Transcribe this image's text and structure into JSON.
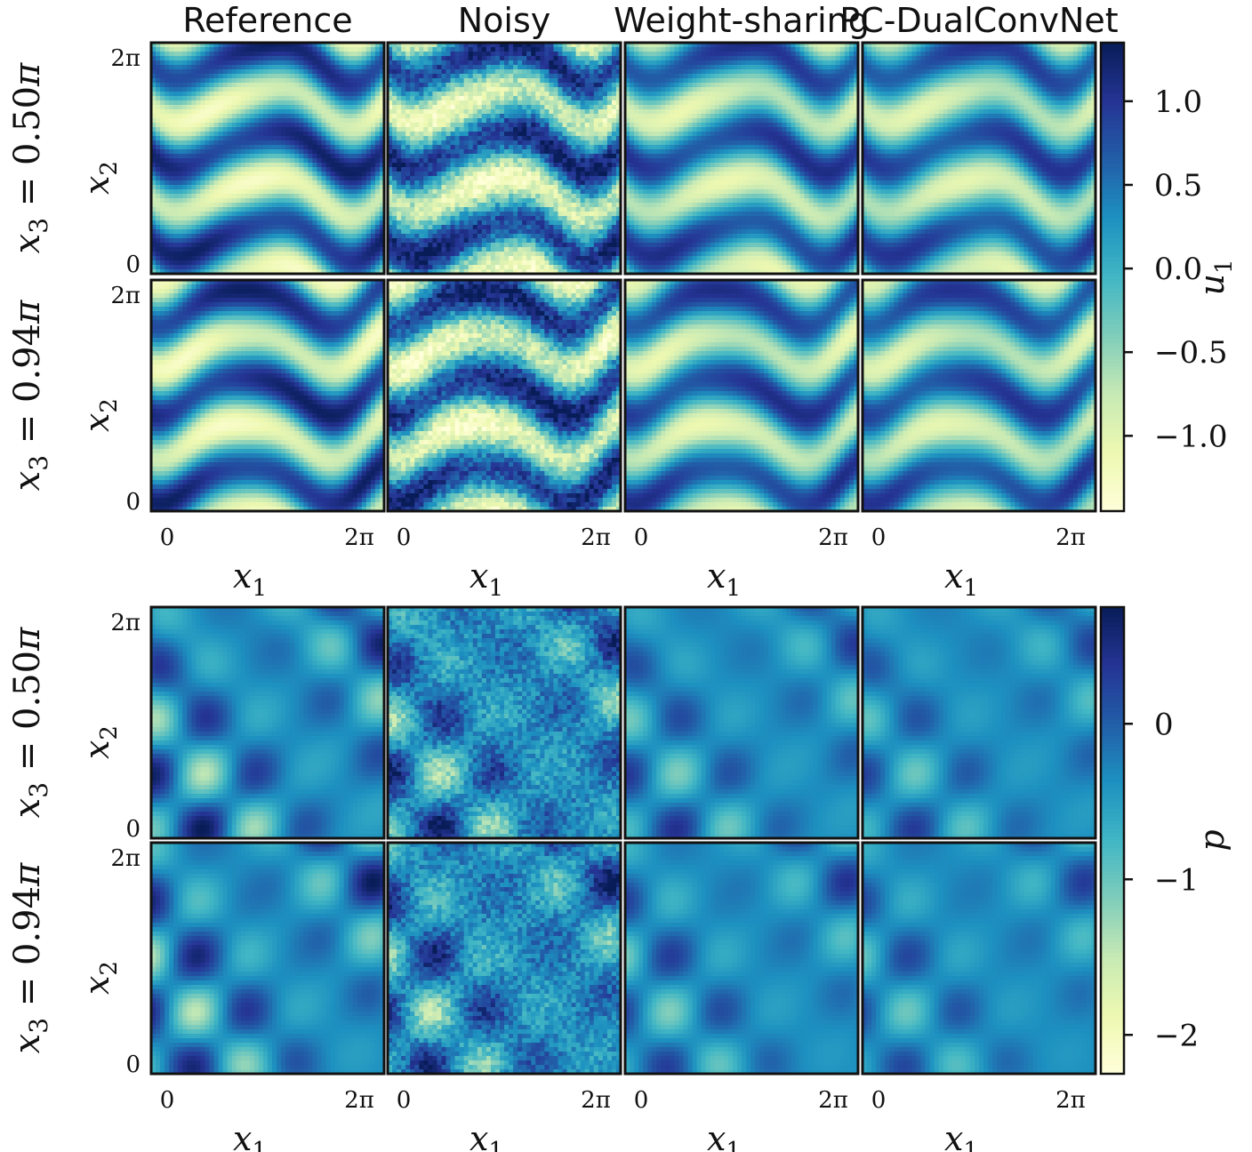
{
  "colors": {
    "colormap": [
      "#ffffd9",
      "#edf8b1",
      "#c7e9b4",
      "#7fcdbb",
      "#41b6c4",
      "#1d91c0",
      "#225ea8",
      "#253494",
      "#081d58"
    ],
    "frame": "#111111"
  },
  "chart_data": [
    {
      "type": "heatmap",
      "field": "u1",
      "columns": [
        "Reference",
        "Noisy",
        "Weight-sharing",
        "PC-DualConvNet"
      ],
      "rows": [
        {
          "label_lhs": "x3 = ",
          "label_val": "0.50",
          "label_rhs": "π"
        },
        {
          "label_lhs": "x3 = ",
          "label_val": "0.94",
          "label_rhs": "π"
        }
      ],
      "x_axis": {
        "var": "x",
        "sub": "1",
        "tick_min": "0",
        "tick_max": "2π",
        "range": [
          0,
          6.2832
        ]
      },
      "y_axis": {
        "var": "x",
        "sub": "2",
        "tick_min": "0",
        "tick_max": "2π",
        "range": [
          0,
          6.2832
        ]
      },
      "colorbar": {
        "label_var": "u",
        "label_sub": "1",
        "range": [
          -1.45,
          1.35
        ],
        "ticks": [
          {
            "value": 1.0,
            "label": "1.0"
          },
          {
            "value": 0.5,
            "label": "0.5"
          },
          {
            "value": 0.0,
            "label": "0.0"
          },
          {
            "value": -0.5,
            "label": "−0.5"
          },
          {
            "value": -1.0,
            "label": "−1.0"
          }
        ]
      },
      "pattern": "wavy horizontal bands",
      "noise": [
        0,
        0.3,
        0,
        0
      ],
      "smooth": [
        1.0,
        1.0,
        0.85,
        0.8
      ]
    },
    {
      "type": "heatmap",
      "field": "p",
      "columns": [
        "Reference",
        "Noisy",
        "Weight-sharing",
        "PC-DualConvNet"
      ],
      "rows": [
        {
          "label_lhs": "x3 = ",
          "label_val": "0.50",
          "label_rhs": "π"
        },
        {
          "label_lhs": "x3 = ",
          "label_val": "0.94",
          "label_rhs": "π"
        }
      ],
      "x_axis": {
        "var": "x",
        "sub": "1",
        "tick_min": "0",
        "tick_max": "2π",
        "range": [
          0,
          6.2832
        ]
      },
      "y_axis": {
        "var": "x",
        "sub": "2",
        "tick_min": "0",
        "tick_max": "2π",
        "range": [
          0,
          6.2832
        ]
      },
      "colorbar": {
        "label_var": "p",
        "label_sub": "",
        "range": [
          -2.25,
          0.75
        ],
        "ticks": [
          {
            "value": 0,
            "label": "0"
          },
          {
            "value": -1,
            "label": "−1"
          },
          {
            "value": -2,
            "label": "−2"
          }
        ]
      },
      "pattern": "lattice of bright and dark spots",
      "noise": [
        0,
        0.3,
        0,
        0
      ],
      "smooth": [
        1.0,
        1.0,
        0.7,
        0.6
      ]
    }
  ]
}
